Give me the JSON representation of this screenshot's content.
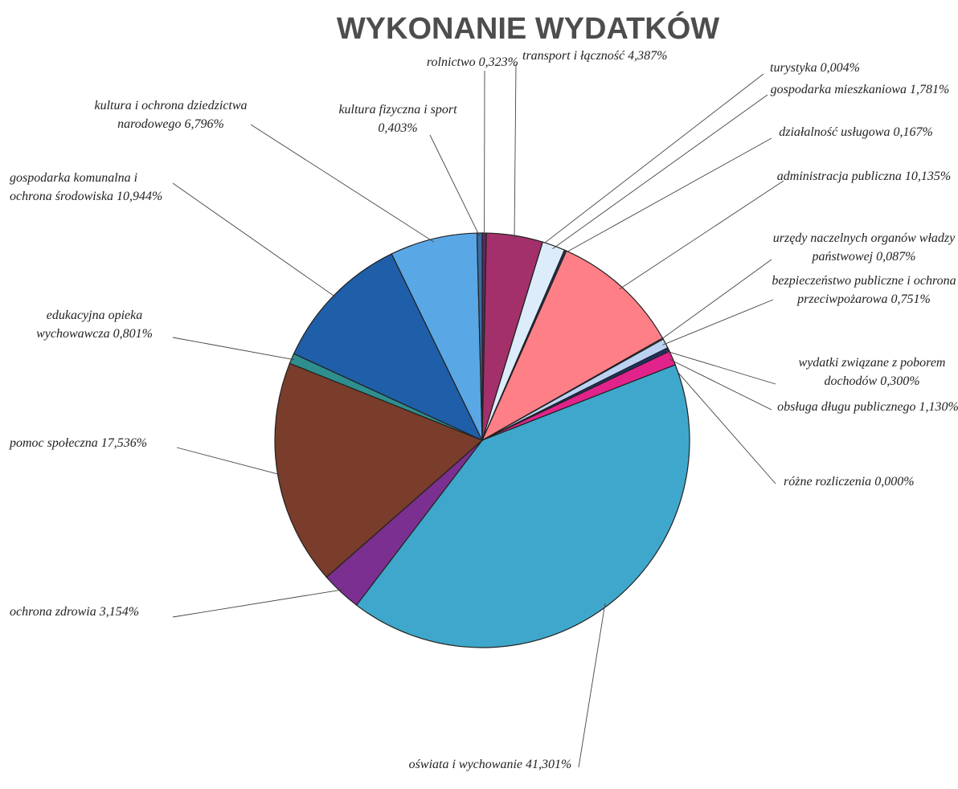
{
  "chart_data": {
    "type": "pie",
    "title": "WYKONANIE WYDATKÓW",
    "categories": [
      "rolnictwo",
      "transport i łączność",
      "turystyka",
      "gospodarka mieszkaniowa",
      "działalność usługowa",
      "administracja publiczna",
      "urzędy naczelnych organów władzy państwowej",
      "bezpieczeństwo publiczne i ochrona przeciwpożarowa",
      "wydatki związane z poborem dochodów",
      "obsługa długu publicznego",
      "różne rozliczenia",
      "oświata i wychowanie",
      "ochrona zdrowia",
      "pomoc społeczna",
      "edukacyjna opieka wychowawcza",
      "gospodarka komunalna i ochrona środowiska",
      "kultura i ochrona dziedzictwa narodowego",
      "kultura fizyczna i sport"
    ],
    "values": [
      0.323,
      4.387,
      0.004,
      1.781,
      0.167,
      10.135,
      0.087,
      0.751,
      0.3,
      1.13,
      0.0,
      41.301,
      3.154,
      17.536,
      0.801,
      10.944,
      6.796,
      0.403
    ],
    "value_labels": [
      "0,323%",
      "4,387%",
      "0,004%",
      "1,781%",
      "0,167%",
      "10,135%",
      "0,087%",
      "0,751%",
      "0,300%",
      "1,130%",
      "0,000%",
      "41,301%",
      "3,154%",
      "17,536%",
      "0,801%",
      "10,944%",
      "6,796%",
      "0,403%"
    ],
    "colors": [
      "#5a2a5e",
      "#a3306b",
      "#f4f4fa",
      "#dcecfb",
      "#24305e",
      "#ff7f87",
      "#f0f0f8",
      "#bcd2f2",
      "#1f2f66",
      "#e2238c",
      "#cccccc",
      "#3fa7cb",
      "#7b2f90",
      "#7a3c2b",
      "#2f8f8f",
      "#1f5ea8",
      "#5aa7e6",
      "#3b6ca3"
    ]
  }
}
